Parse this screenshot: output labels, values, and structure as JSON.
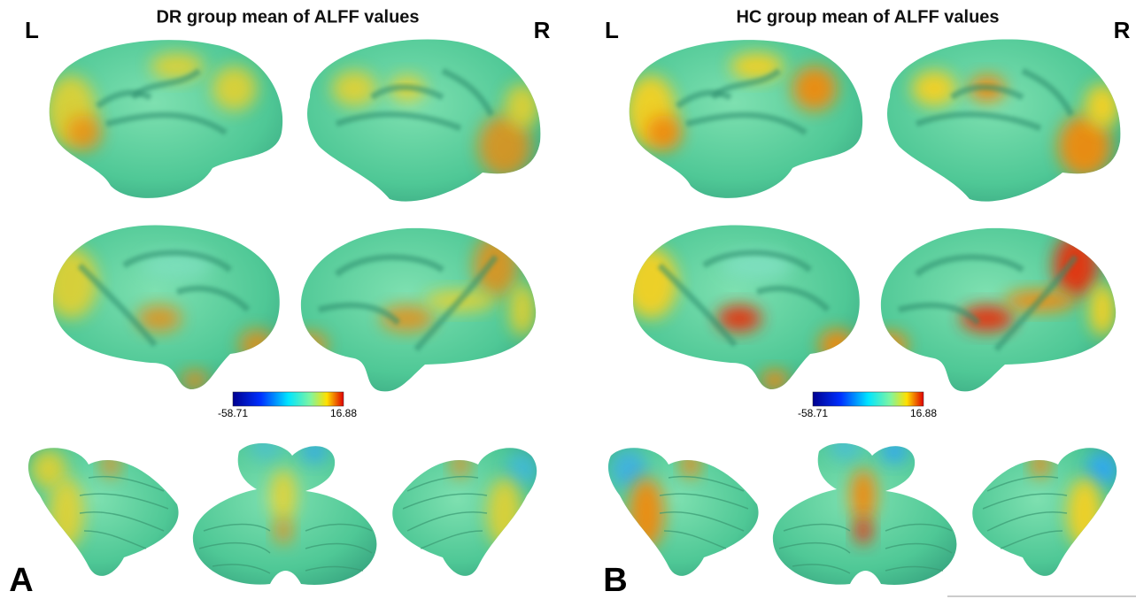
{
  "panels": [
    {
      "title": "DR group mean of ALFF values",
      "left_label": "L",
      "right_label": "R",
      "colorbar": {
        "min": -58.71,
        "max": 16.88
      },
      "panel_label": "A"
    },
    {
      "title": "HC group mean of ALFF values",
      "left_label": "L",
      "right_label": "R",
      "colorbar": {
        "min": -58.71,
        "max": 16.88
      },
      "panel_label": "B"
    }
  ]
}
